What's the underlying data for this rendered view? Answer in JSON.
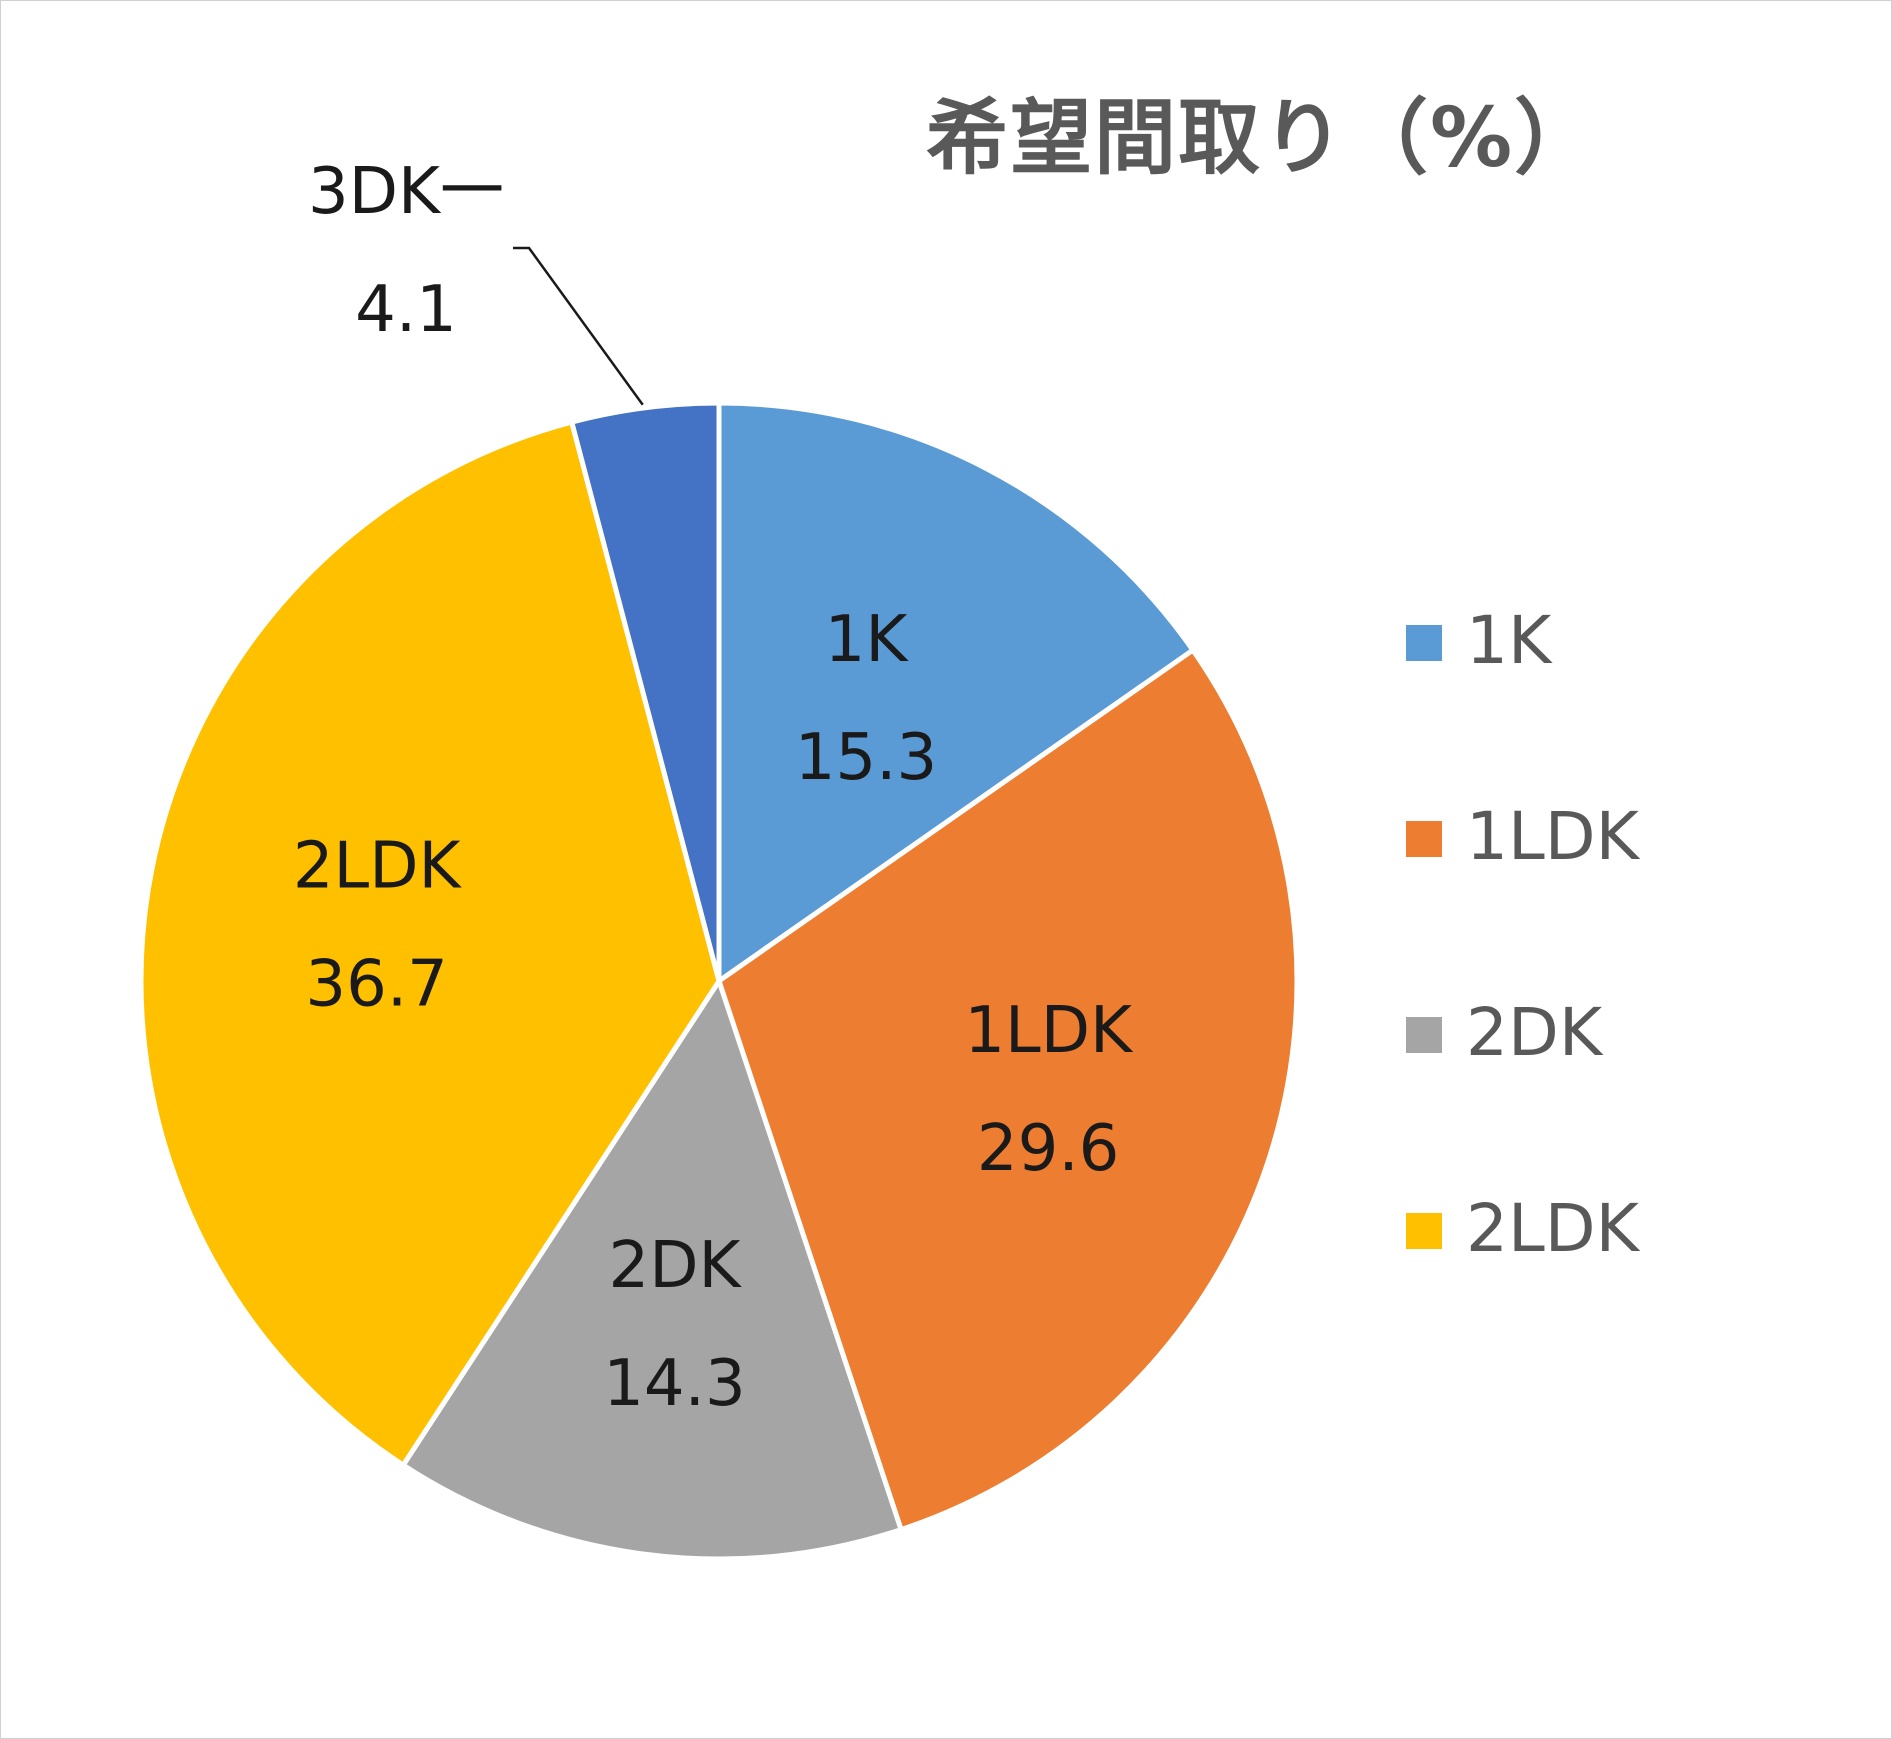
{
  "chart_data": {
    "type": "pie",
    "title": "希望間取り（%）",
    "categories": [
      "1K",
      "1LDK",
      "2DK",
      "2LDK",
      "3DK一"
    ],
    "values": [
      15.3,
      29.6,
      14.3,
      36.7,
      4.1
    ],
    "colors": [
      "#5B9BD5",
      "#ED7D31",
      "#A5A5A5",
      "#FFC000",
      "#4472C4"
    ],
    "legend": [
      "1K",
      "1LDK",
      "2DK",
      "2LDK"
    ],
    "legend_position": "right",
    "data_labels": "category and value",
    "start_angle": "12 o'clock, clockwise"
  }
}
